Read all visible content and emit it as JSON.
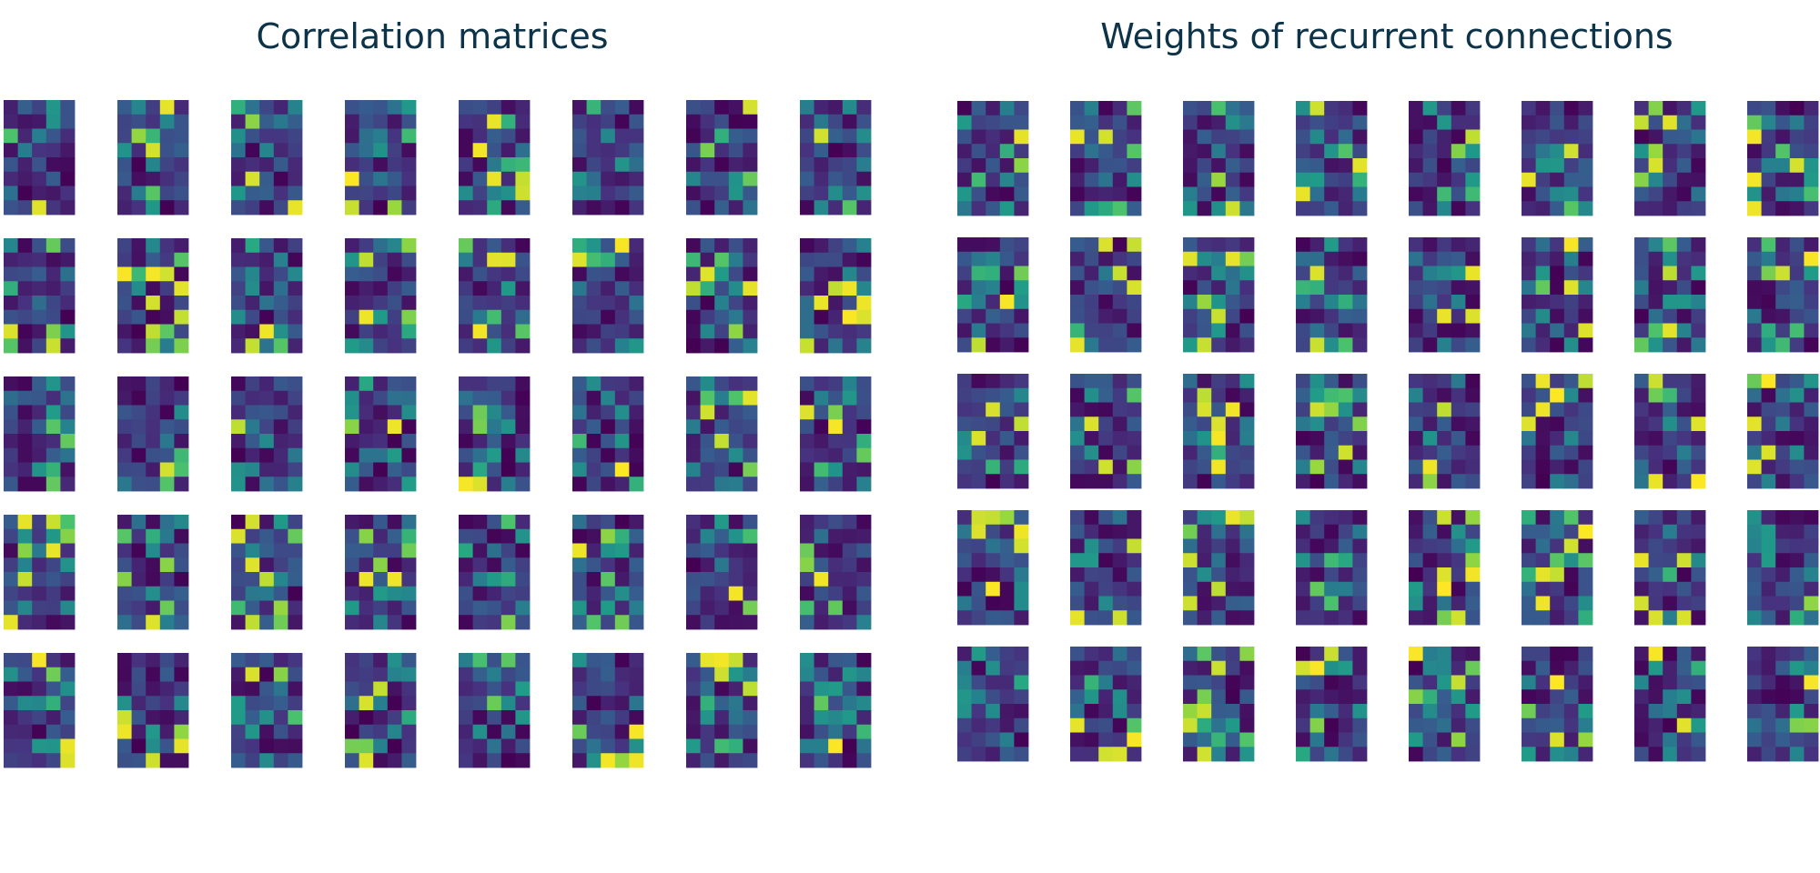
{
  "panels": [
    {
      "title": "Correlation matrices"
    },
    {
      "title": "Weights of recurrent connections"
    }
  ],
  "colormap": "viridis",
  "colormap_stops": [
    "#440154",
    "#46327e",
    "#365c8d",
    "#277f8e",
    "#1fa187",
    "#4ac16d",
    "#a0da39",
    "#fde725"
  ],
  "chart_data": [
    {
      "type": "heatmap",
      "title": "Correlation matrices",
      "grid": {
        "rows": 5,
        "cols": 8
      },
      "matrix_shape": [
        8,
        5
      ],
      "value_range": [
        0,
        1
      ],
      "axes": "off",
      "note": "matrix cell values not legible; qualitative viridis heatmaps only"
    },
    {
      "type": "heatmap",
      "title": "Weights of recurrent connections",
      "grid": {
        "rows": 5,
        "cols": 8
      },
      "matrix_shape": [
        8,
        5
      ],
      "value_range": [
        0,
        1
      ],
      "axes": "off",
      "note": "matrix cell values not legible; qualitative viridis heatmaps only"
    }
  ]
}
